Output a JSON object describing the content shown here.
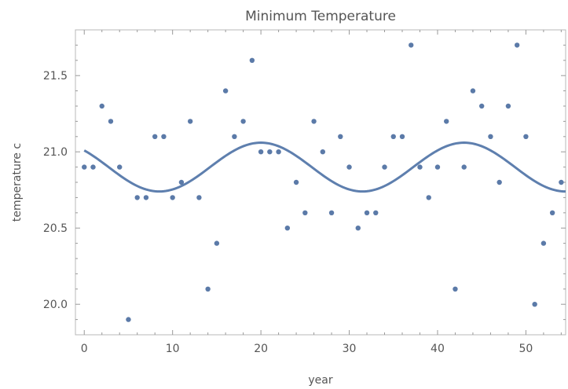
{
  "chart_data": {
    "type": "scatter",
    "title": "Minimum Temperature",
    "xlabel": "year",
    "ylabel": "temperature c",
    "xlim": [
      -1,
      54.5
    ],
    "ylim": [
      19.8,
      21.8
    ],
    "xticks": [
      "0",
      "10",
      "20",
      "30",
      "40",
      "50"
    ],
    "yticks": [
      "20.0",
      "20.5",
      "21.0",
      "21.5"
    ],
    "grid": false,
    "series": [
      {
        "type": "scatter",
        "color": "#5b7aa8",
        "x": [
          0,
          1,
          2,
          3,
          4,
          5,
          6,
          7,
          8,
          9,
          10,
          11,
          12,
          13,
          14,
          15,
          16,
          17,
          18,
          19,
          20,
          21,
          22,
          23,
          24,
          25,
          26,
          27,
          28,
          29,
          30,
          31,
          32,
          33,
          34,
          35,
          36,
          37,
          38,
          39,
          40,
          41,
          42,
          43,
          44,
          45,
          46,
          47,
          48,
          49,
          50,
          51,
          52,
          53,
          54
        ],
        "y": [
          20.9,
          20.9,
          21.3,
          21.2,
          20.9,
          19.9,
          20.7,
          20.7,
          21.1,
          21.1,
          20.7,
          20.8,
          21.2,
          20.7,
          20.1,
          20.4,
          21.4,
          21.1,
          21.2,
          21.6,
          21.0,
          21.0,
          21.0,
          20.5,
          20.8,
          20.6,
          21.2,
          21.0,
          20.6,
          21.1,
          20.9,
          20.5,
          20.6,
          20.6,
          20.9,
          21.1,
          21.1,
          21.7,
          20.9,
          20.7,
          20.9,
          21.2,
          20.1,
          20.9,
          21.4,
          21.3,
          21.1,
          20.8,
          21.3,
          21.7,
          21.1,
          20.0,
          20.4,
          20.6,
          20.8
        ]
      },
      {
        "type": "line",
        "color": "#5e7fae",
        "model": {
          "mean": 20.9,
          "amplitude": 0.16,
          "period": 23,
          "phase_year": 14.25
        },
        "x": [
          0,
          2,
          4,
          6,
          8,
          10,
          12,
          14,
          16,
          18,
          20,
          22,
          24,
          26,
          28,
          30,
          32,
          34,
          36,
          38,
          40,
          42,
          44,
          46,
          48,
          50,
          52,
          54
        ],
        "y": [
          20.99,
          20.94,
          20.85,
          20.78,
          20.75,
          20.77,
          20.83,
          20.92,
          20.98,
          21.04,
          21.06,
          21.04,
          20.97,
          20.9,
          20.81,
          20.76,
          20.75,
          20.78,
          20.87,
          20.94,
          21.02,
          21.05,
          21.05,
          21.0,
          20.93,
          20.85,
          20.78,
          20.75
        ]
      }
    ]
  }
}
